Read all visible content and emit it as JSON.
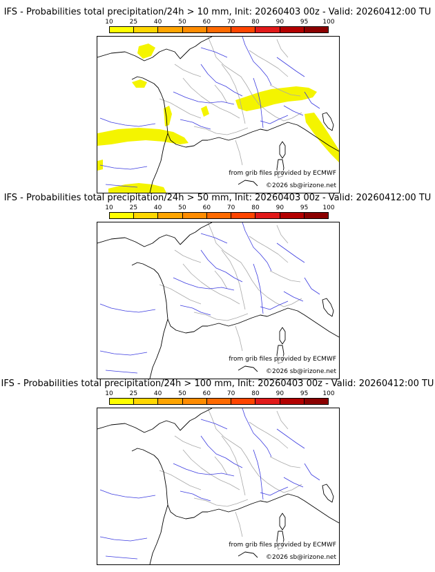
{
  "colorbar": {
    "ticks": [
      "10",
      "25",
      "40",
      "50",
      "60",
      "70",
      "80",
      "90",
      "95",
      "100"
    ],
    "colors": [
      "#ffff00",
      "#ffd700",
      "#ffa500",
      "#ff8c00",
      "#ff6a00",
      "#ff4500",
      "#e11a1a",
      "#b30000",
      "#8b0000",
      "#5c0000"
    ]
  },
  "colors": {
    "rivers": "#3a3ae0",
    "borders": "#a8a8a8",
    "coast": "#000000",
    "precip": "#f4f400"
  },
  "panels": [
    {
      "title": "IFS - Probabilities total precipitation/24h > 10 mm, Init: 20260403 00z - Valid: 20260412:00 TU",
      "credit": "from grib files provided by ECMWF",
      "copyright": "©2026 sb@irizone.net",
      "show_precip": true
    },
    {
      "title": "IFS - Probabilities total precipitation/24h > 50 mm, Init: 20260403 00z - Valid: 20260412:00 TU",
      "credit": "from grib files provided by ECMWF",
      "copyright": "©2026 sb@irizone.net",
      "show_precip": false
    },
    {
      "title": "IFS - Probabilities total precipitation/24h > 100 mm, Init: 20260403 00z - Valid: 20260412:00 TU",
      "credit": "from grib files provided by ECMWF",
      "copyright": "©2026 sb@irizone.net",
      "show_precip": false
    }
  ]
}
